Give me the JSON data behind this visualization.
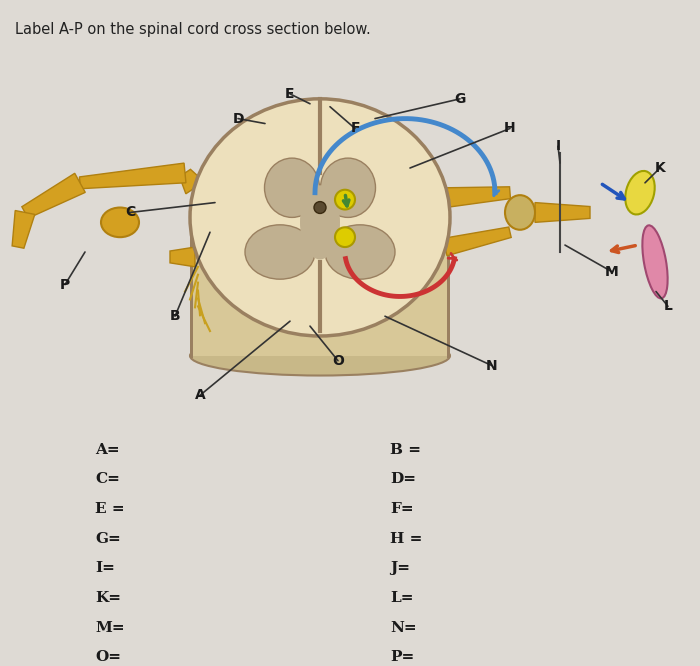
{
  "title": "Label A-P on the spinal cord cross section below.",
  "bg_color": "#dedad4",
  "title_fontsize": 10.5,
  "title_color": "#222222",
  "labels_left": [
    "A=",
    "C=",
    "E =",
    "G=",
    "I=",
    "K=",
    "M=",
    "O="
  ],
  "labels_right": [
    "B =",
    "D=",
    "F=",
    "H =",
    "J=",
    "L=",
    "N=",
    "P="
  ],
  "label_fontsize": 11,
  "label_color": "#1a1a1a",
  "nerve_yellow": "#d4a020",
  "nerve_yellow_light": "#e8c060",
  "nerve_yellow_dark": "#b08010",
  "cord_outer": "#ddd0a8",
  "cord_outer_edge": "#9a8060",
  "cord_gray_matter": "#c0b090",
  "cord_white": "#ede0bc",
  "blue_arc": "#4488cc",
  "red_arc": "#cc3333",
  "green_dot": "#448833",
  "yellow_dot": "#ddcc00"
}
